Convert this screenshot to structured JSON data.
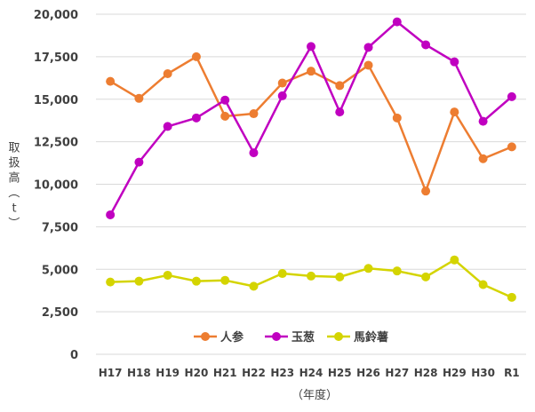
{
  "chart_data": {
    "type": "line",
    "categories": [
      "H17",
      "H18",
      "H19",
      "H20",
      "H21",
      "H22",
      "H23",
      "H24",
      "H25",
      "H26",
      "H27",
      "H28",
      "H29",
      "H30",
      "R1"
    ],
    "series": [
      {
        "name": "人参",
        "color": "#ed7d31",
        "values": [
          16050,
          15050,
          16500,
          17500,
          14000,
          14150,
          15950,
          16650,
          15800,
          17000,
          13900,
          9600,
          14250,
          11500,
          12200
        ]
      },
      {
        "name": "玉葱",
        "color": "#c000c0",
        "values": [
          8200,
          11300,
          13400,
          13900,
          14950,
          11850,
          15200,
          18100,
          14250,
          18050,
          19550,
          18200,
          17200,
          13700,
          15150
        ]
      },
      {
        "name": "馬鈴薯",
        "color": "#d4d400",
        "values": [
          4250,
          4300,
          4650,
          4300,
          4350,
          4000,
          4750,
          4600,
          4550,
          5050,
          4900,
          4550,
          5550,
          4100,
          3350
        ]
      }
    ],
    "yticks": [
      "0",
      "2,500",
      "5,000",
      "7,500",
      "10,000",
      "12,500",
      "15,000",
      "17,500",
      "20,000"
    ],
    "ylim": [
      0,
      20000
    ],
    "ylabel": "取扱高（t）",
    "xlabel": "（年度）",
    "grid": true,
    "legend_position": "inside-bottom-center"
  }
}
